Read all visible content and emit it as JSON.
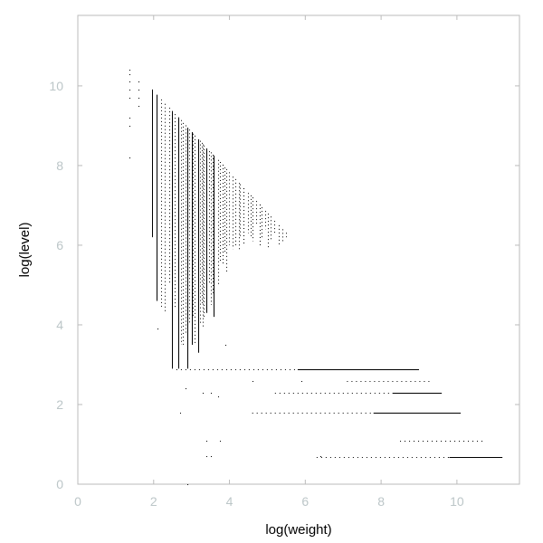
{
  "chart_data": {
    "type": "scatter",
    "title": "",
    "xlabel": "log(weight)",
    "ylabel": "log(level)",
    "xlim": [
      0,
      11.65
    ],
    "ylim": [
      0,
      11.77
    ],
    "xticks": [
      "0",
      "2",
      "4",
      "6",
      "8",
      "10"
    ],
    "yticks": [
      "0",
      "2",
      "4",
      "6",
      "8",
      "10"
    ],
    "grid": false,
    "legend": "none",
    "colors": {
      "points": "#000000",
      "frame": "#bbbbbb",
      "ticks": "#bcc6c8"
    },
    "vertical_bands": [
      {
        "x": 1.95,
        "top": 9.91,
        "bottom": 6.2,
        "style": "solid"
      },
      {
        "x": 2.08,
        "top": 9.78,
        "bottom": 4.6,
        "style": "solid"
      },
      {
        "x": 2.2,
        "top": 9.66,
        "bottom": 4.4,
        "style": "dotted"
      },
      {
        "x": 2.3,
        "top": 9.55,
        "bottom": 4.3,
        "style": "dotted"
      },
      {
        "x": 2.4,
        "top": 9.45,
        "bottom": 5.0,
        "style": "dotted"
      },
      {
        "x": 2.48,
        "top": 9.37,
        "bottom": 2.9,
        "style": "solid"
      },
      {
        "x": 2.56,
        "top": 9.29,
        "bottom": 4.4,
        "style": "dotted"
      },
      {
        "x": 2.64,
        "top": 9.21,
        "bottom": 2.9,
        "style": "solid"
      },
      {
        "x": 2.71,
        "top": 9.14,
        "bottom": 3.5,
        "style": "dotted"
      },
      {
        "x": 2.77,
        "top": 9.07,
        "bottom": 3.5,
        "style": "dotted"
      },
      {
        "x": 2.83,
        "top": 9.01,
        "bottom": 3.8,
        "style": "dotted"
      },
      {
        "x": 2.89,
        "top": 8.95,
        "bottom": 2.9,
        "style": "solid"
      },
      {
        "x": 2.94,
        "top": 8.9,
        "bottom": 4.0,
        "style": "dotted"
      },
      {
        "x": 3.0,
        "top": 8.84,
        "bottom": 3.5,
        "style": "solid"
      },
      {
        "x": 3.04,
        "top": 8.8,
        "bottom": 4.2,
        "style": "dotted"
      },
      {
        "x": 3.09,
        "top": 8.75,
        "bottom": 3.5,
        "style": "dotted"
      },
      {
        "x": 3.18,
        "top": 8.66,
        "bottom": 3.3,
        "style": "solid"
      },
      {
        "x": 3.22,
        "top": 8.62,
        "bottom": 4.0,
        "style": "dotted"
      },
      {
        "x": 3.26,
        "top": 8.57,
        "bottom": 4.5,
        "style": "dotted"
      },
      {
        "x": 3.3,
        "top": 8.53,
        "bottom": 3.9,
        "style": "dotted"
      },
      {
        "x": 3.33,
        "top": 8.5,
        "bottom": 4.2,
        "style": "dotted"
      },
      {
        "x": 3.4,
        "top": 8.43,
        "bottom": 4.3,
        "style": "solid"
      },
      {
        "x": 3.47,
        "top": 8.36,
        "bottom": 5.0,
        "style": "dotted"
      },
      {
        "x": 3.5,
        "top": 8.33,
        "bottom": 4.5,
        "style": "dotted"
      },
      {
        "x": 3.56,
        "top": 8.27,
        "bottom": 4.8,
        "style": "dotted"
      },
      {
        "x": 3.58,
        "top": 8.25,
        "bottom": 4.2,
        "style": "solid"
      },
      {
        "x": 3.69,
        "top": 8.14,
        "bottom": 5.0,
        "style": "dotted"
      },
      {
        "x": 3.74,
        "top": 8.09,
        "bottom": 5.6,
        "style": "dotted"
      },
      {
        "x": 3.81,
        "top": 8.02,
        "bottom": 5.5,
        "style": "dotted"
      },
      {
        "x": 3.87,
        "top": 7.95,
        "bottom": 5.8,
        "style": "dotted"
      },
      {
        "x": 3.91,
        "top": 7.91,
        "bottom": 5.3,
        "style": "dotted"
      },
      {
        "x": 3.99,
        "top": 7.83,
        "bottom": 6.0,
        "style": "dotted"
      },
      {
        "x": 4.09,
        "top": 7.72,
        "bottom": 5.9,
        "style": "dotted"
      },
      {
        "x": 4.16,
        "top": 7.66,
        "bottom": 6.0,
        "style": "dotted"
      },
      {
        "x": 4.25,
        "top": 7.56,
        "bottom": 5.9,
        "style": "dotted"
      },
      {
        "x": 4.28,
        "top": 7.53,
        "bottom": 6.2,
        "style": "dotted"
      },
      {
        "x": 4.38,
        "top": 7.43,
        "bottom": 6.0,
        "style": "dotted"
      },
      {
        "x": 4.5,
        "top": 7.31,
        "bottom": 6.3,
        "style": "dotted"
      },
      {
        "x": 4.56,
        "top": 7.25,
        "bottom": 6.2,
        "style": "dotted"
      },
      {
        "x": 4.61,
        "top": 7.2,
        "bottom": 6.1,
        "style": "dotted"
      },
      {
        "x": 4.7,
        "top": 7.11,
        "bottom": 6.5,
        "style": "dotted"
      },
      {
        "x": 4.79,
        "top": 7.02,
        "bottom": 6.0,
        "style": "dotted"
      },
      {
        "x": 4.85,
        "top": 6.95,
        "bottom": 6.2,
        "style": "dotted"
      },
      {
        "x": 4.94,
        "top": 6.86,
        "bottom": 6.4,
        "style": "dotted"
      },
      {
        "x": 5.01,
        "top": 6.79,
        "bottom": 5.9,
        "style": "dotted"
      },
      {
        "x": 5.08,
        "top": 6.72,
        "bottom": 6.1,
        "style": "dotted"
      },
      {
        "x": 5.19,
        "top": 6.61,
        "bottom": 6.3,
        "style": "dotted"
      },
      {
        "x": 5.3,
        "top": 6.5,
        "bottom": 6.0,
        "style": "dotted"
      },
      {
        "x": 5.39,
        "top": 6.4,
        "bottom": 6.1,
        "style": "dotted"
      },
      {
        "x": 5.48,
        "top": 6.31,
        "bottom": 6.2,
        "style": "dotted"
      }
    ],
    "horizontal_bands": [
      {
        "y": 2.89,
        "x_start": 2.6,
        "x_end": 5.8,
        "style": "dotted"
      },
      {
        "y": 2.89,
        "x_start": 5.8,
        "x_end": 9.0,
        "style": "solid"
      },
      {
        "y": 2.6,
        "x_start": 7.1,
        "x_end": 9.3,
        "style": "dotted"
      },
      {
        "y": 2.3,
        "x_start": 5.2,
        "x_end": 8.3,
        "style": "dotted"
      },
      {
        "y": 2.3,
        "x_start": 8.3,
        "x_end": 9.6,
        "style": "solid"
      },
      {
        "y": 1.79,
        "x_start": 4.6,
        "x_end": 7.8,
        "style": "dotted"
      },
      {
        "y": 1.79,
        "x_start": 7.8,
        "x_end": 10.1,
        "style": "solid"
      },
      {
        "y": 1.1,
        "x_start": 8.5,
        "x_end": 10.7,
        "style": "dotted"
      },
      {
        "y": 0.69,
        "x_start": 6.3,
        "x_end": 9.8,
        "style": "dotted"
      },
      {
        "y": 0.69,
        "x_start": 9.8,
        "x_end": 11.2,
        "style": "solid"
      }
    ],
    "points": [
      [
        1.35,
        10.4
      ],
      [
        1.35,
        10.3
      ],
      [
        1.35,
        10.1
      ],
      [
        1.35,
        9.9
      ],
      [
        1.35,
        9.7
      ],
      [
        1.35,
        9.2
      ],
      [
        1.35,
        9.0
      ],
      [
        1.35,
        8.2
      ],
      [
        1.6,
        10.1
      ],
      [
        1.6,
        9.9
      ],
      [
        1.6,
        9.7
      ],
      [
        1.6,
        9.5
      ],
      [
        2.9,
        0.0
      ],
      [
        2.7,
        1.8
      ],
      [
        3.3,
        2.3
      ],
      [
        3.4,
        1.1
      ],
      [
        3.75,
        1.1
      ],
      [
        3.4,
        0.7
      ],
      [
        3.5,
        0.7
      ],
      [
        3.5,
        2.3
      ],
      [
        3.7,
        2.2
      ],
      [
        2.85,
        2.4
      ],
      [
        2.1,
        3.9
      ],
      [
        3.9,
        3.5
      ],
      [
        4.6,
        2.6
      ],
      [
        5.9,
        2.6
      ],
      [
        6.4,
        0.7
      ]
    ]
  }
}
